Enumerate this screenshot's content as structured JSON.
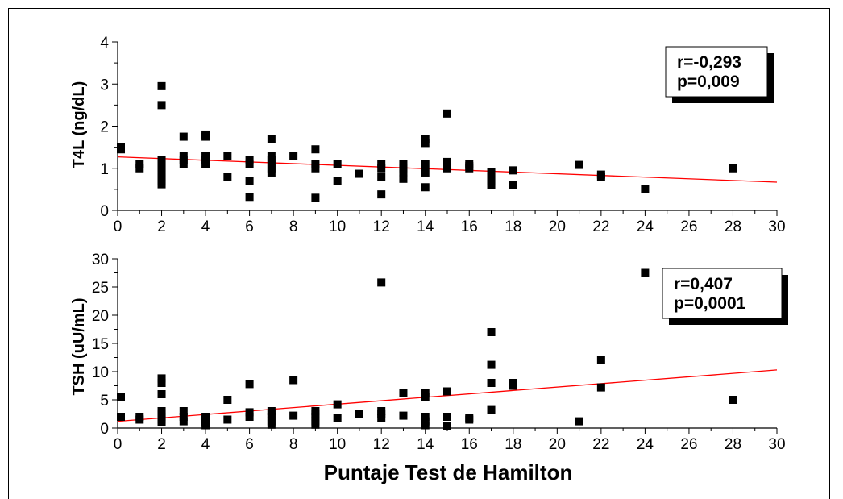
{
  "chart_data": [
    {
      "type": "scatter",
      "ylabel": "T4L (ng/dL)",
      "xlabel": "",
      "xlim": [
        0,
        30
      ],
      "ylim": [
        0,
        4
      ],
      "x_ticks": [
        "0",
        "2",
        "4",
        "6",
        "8",
        "10",
        "12",
        "14",
        "16",
        "18",
        "20",
        "22",
        "24",
        "26",
        "28",
        "30"
      ],
      "y_ticks": [
        "0",
        "1",
        "2",
        "3",
        "4"
      ],
      "annotation": [
        "r=-0,293",
        "p=0,009"
      ],
      "regression": {
        "x0": 0,
        "y0": 1.27,
        "x1": 30,
        "y1": 0.67
      },
      "points": [
        [
          0,
          1.5
        ],
        [
          0,
          1.45
        ],
        [
          1,
          1.1
        ],
        [
          1,
          1.0
        ],
        [
          2,
          2.95
        ],
        [
          2,
          2.5
        ],
        [
          2,
          1.2
        ],
        [
          2,
          1.1
        ],
        [
          2,
          1.0
        ],
        [
          2,
          0.9
        ],
        [
          2,
          0.8
        ],
        [
          2,
          0.7
        ],
        [
          2,
          0.62
        ],
        [
          3,
          1.75
        ],
        [
          3,
          1.3
        ],
        [
          3,
          1.2
        ],
        [
          3,
          1.1
        ],
        [
          4,
          1.8
        ],
        [
          4,
          1.75
        ],
        [
          4,
          1.3
        ],
        [
          4,
          1.2
        ],
        [
          4,
          1.1
        ],
        [
          5,
          1.3
        ],
        [
          5,
          0.8
        ],
        [
          6,
          1.2
        ],
        [
          6,
          1.1
        ],
        [
          6,
          0.7
        ],
        [
          6,
          0.32
        ],
        [
          7,
          1.7
        ],
        [
          7,
          1.3
        ],
        [
          7,
          1.2
        ],
        [
          7,
          1.1
        ],
        [
          7,
          1.0
        ],
        [
          7,
          0.9
        ],
        [
          8,
          1.3
        ],
        [
          9,
          1.45
        ],
        [
          9,
          1.1
        ],
        [
          9,
          1.0
        ],
        [
          9,
          0.3
        ],
        [
          10,
          1.1
        ],
        [
          10,
          0.7
        ],
        [
          11,
          0.87
        ],
        [
          12,
          1.1
        ],
        [
          12,
          1.0
        ],
        [
          12,
          0.8
        ],
        [
          12,
          0.38
        ],
        [
          13,
          1.1
        ],
        [
          13,
          1.0
        ],
        [
          13,
          0.9
        ],
        [
          13,
          0.75
        ],
        [
          14,
          1.7
        ],
        [
          14,
          1.6
        ],
        [
          14,
          1.1
        ],
        [
          14,
          0.9
        ],
        [
          14,
          0.55
        ],
        [
          15,
          2.3
        ],
        [
          15,
          1.15
        ],
        [
          15,
          1.0
        ],
        [
          16,
          1.1
        ],
        [
          16,
          1.05
        ],
        [
          16,
          1.0
        ],
        [
          17,
          0.9
        ],
        [
          17,
          0.8
        ],
        [
          17,
          0.7
        ],
        [
          17,
          0.6
        ],
        [
          18,
          0.95
        ],
        [
          18,
          0.6
        ],
        [
          21,
          1.08
        ],
        [
          22,
          0.85
        ],
        [
          22,
          0.8
        ],
        [
          24,
          0.5
        ],
        [
          28,
          1.0
        ]
      ]
    },
    {
      "type": "scatter",
      "ylabel": "TSH (uU/mL)",
      "xlabel": "Puntaje Test de Hamilton",
      "xlim": [
        0,
        30
      ],
      "ylim": [
        0,
        30
      ],
      "x_ticks": [
        "0",
        "2",
        "4",
        "6",
        "8",
        "10",
        "12",
        "14",
        "16",
        "18",
        "20",
        "22",
        "24",
        "26",
        "28",
        "30"
      ],
      "y_ticks": [
        "0",
        "5",
        "10",
        "15",
        "20",
        "25",
        "30"
      ],
      "annotation": [
        "r=0,407",
        "p=0,0001"
      ],
      "regression": {
        "x0": 0,
        "y0": 1.2,
        "x1": 30,
        "y1": 10.3
      },
      "points": [
        [
          0,
          5.5
        ],
        [
          0,
          2.0
        ],
        [
          1,
          2.0
        ],
        [
          1,
          1.5
        ],
        [
          2,
          8.8
        ],
        [
          2,
          8.0
        ],
        [
          2,
          6.0
        ],
        [
          2,
          3.0
        ],
        [
          2,
          2.5
        ],
        [
          2,
          2.0
        ],
        [
          2,
          1.5
        ],
        [
          2,
          1.0
        ],
        [
          3,
          3.0
        ],
        [
          3,
          2.0
        ],
        [
          3,
          1.2
        ],
        [
          4,
          2.0
        ],
        [
          4,
          1.5
        ],
        [
          4,
          1.0
        ],
        [
          4,
          0.5
        ],
        [
          5,
          5.0
        ],
        [
          5,
          1.5
        ],
        [
          6,
          7.8
        ],
        [
          6,
          2.8
        ],
        [
          6,
          2.0
        ],
        [
          7,
          3.0
        ],
        [
          7,
          2.5
        ],
        [
          7,
          2.0
        ],
        [
          7,
          1.2
        ],
        [
          7,
          0.6
        ],
        [
          8,
          8.5
        ],
        [
          8,
          2.2
        ],
        [
          9,
          3.0
        ],
        [
          9,
          2.5
        ],
        [
          9,
          2.0
        ],
        [
          9,
          1.2
        ],
        [
          9,
          0.6
        ],
        [
          10,
          4.2
        ],
        [
          10,
          1.8
        ],
        [
          11,
          2.5
        ],
        [
          12,
          25.8
        ],
        [
          12,
          3.0
        ],
        [
          12,
          2.5
        ],
        [
          12,
          1.8
        ],
        [
          13,
          6.2
        ],
        [
          13,
          2.2
        ],
        [
          14,
          6.2
        ],
        [
          14,
          5.5
        ],
        [
          14,
          2.0
        ],
        [
          14,
          1.2
        ],
        [
          14,
          0.5
        ],
        [
          15,
          6.5
        ],
        [
          15,
          2.0
        ],
        [
          15,
          0.3
        ],
        [
          16,
          1.8
        ],
        [
          16,
          1.5
        ],
        [
          17,
          17.0
        ],
        [
          17,
          11.2
        ],
        [
          17,
          8.0
        ],
        [
          17,
          3.2
        ],
        [
          18,
          8.0
        ],
        [
          18,
          7.5
        ],
        [
          21,
          1.2
        ],
        [
          22,
          12.0
        ],
        [
          22,
          7.2
        ],
        [
          24,
          27.5
        ],
        [
          28,
          5.0
        ]
      ]
    }
  ],
  "colors": {
    "marker": "#000000",
    "regression": "#ff0000",
    "axis": "#000000"
  }
}
